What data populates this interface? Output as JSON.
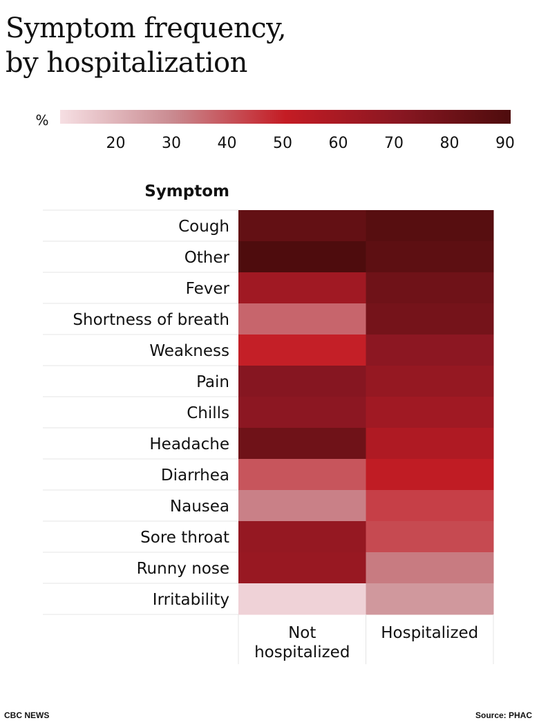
{
  "title": "Symptom frequency, by hospitalization",
  "title_lines": [
    "Symptom frequency,",
    "by hospitalization"
  ],
  "legend": {
    "unit": "%",
    "ticks": [
      20,
      30,
      40,
      50,
      60,
      70,
      80,
      90
    ],
    "range": [
      10,
      91
    ],
    "colors": [
      "#f6dfe3",
      "#c98a90",
      "#c41c24",
      "#8a1722",
      "#4e0c0d"
    ]
  },
  "chart_data": {
    "type": "heatmap",
    "title": "Symptom frequency, by hospitalization",
    "row_header": "Symptom",
    "rows": [
      "Cough",
      "Other",
      "Fever",
      "Shortness of breath",
      "Weakness",
      "Pain",
      "Chills",
      "Headache",
      "Diarrhea",
      "Nausea",
      "Sore throat",
      "Runny nose",
      "Irritability"
    ],
    "columns": [
      "Not hospitalized",
      "Hospitalized"
    ],
    "values": [
      [
        84,
        88
      ],
      [
        91,
        86
      ],
      [
        63,
        80
      ],
      [
        37,
        78
      ],
      [
        50,
        70
      ],
      [
        72,
        67
      ],
      [
        70,
        63
      ],
      [
        80,
        58
      ],
      [
        40,
        52
      ],
      [
        32,
        44
      ],
      [
        67,
        42
      ],
      [
        66,
        33
      ],
      [
        13,
        27
      ]
    ],
    "color_scale_range": [
      10,
      91
    ]
  },
  "footer": {
    "left": "CBC NEWS",
    "right": "Source: PHAC"
  }
}
